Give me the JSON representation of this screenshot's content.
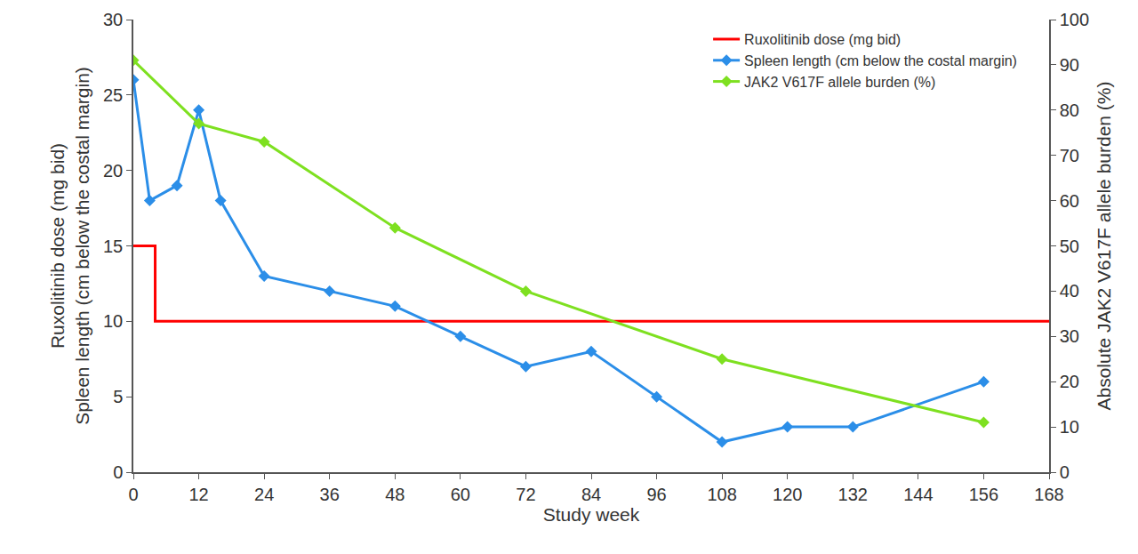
{
  "chart_data": {
    "type": "line",
    "x_label": "Study week",
    "y_label": [
      "Ruxolitinib dose (mg bid)",
      "Spleen length (cm below the costal margin)"
    ],
    "y2_label": "Absolute JAK2 V617F allele burden (%)",
    "xlim": [
      0,
      168
    ],
    "xticks": [
      0,
      12,
      24,
      36,
      48,
      60,
      72,
      84,
      96,
      108,
      120,
      132,
      144,
      156,
      168
    ],
    "ylim": [
      0,
      30
    ],
    "yticks": [
      0,
      5,
      10,
      15,
      20,
      25,
      30
    ],
    "y2lim": [
      0,
      100
    ],
    "y2ticks": [
      0,
      10,
      20,
      30,
      40,
      50,
      60,
      70,
      80,
      90,
      100
    ],
    "grid": false,
    "legend": "top right",
    "series": [
      {
        "name": "Ruxolitinib dose (mg bid)",
        "color": "#ff0000",
        "marker": "none",
        "x": [
          0,
          4,
          4,
          168
        ],
        "values": [
          15,
          15,
          10,
          10
        ]
      },
      {
        "name": "Spleen length (cm below the costal margin)",
        "color": "#2b8ee8",
        "marker": "diamond",
        "x": [
          0,
          3,
          8,
          12,
          16,
          24,
          36,
          48,
          60,
          72,
          84,
          96,
          108,
          120,
          132,
          156
        ],
        "values": [
          26,
          18,
          19,
          24,
          18,
          13,
          12,
          11,
          9,
          7,
          8,
          5,
          2,
          3,
          3,
          6
        ]
      },
      {
        "name": "JAK2 V617F allele burden (%)",
        "color": "#7ee020",
        "marker": "diamond",
        "axis": "y2",
        "x": [
          0,
          12,
          24,
          48,
          72,
          108,
          156
        ],
        "values": [
          91,
          77,
          73,
          54,
          40,
          25,
          11
        ]
      }
    ]
  }
}
